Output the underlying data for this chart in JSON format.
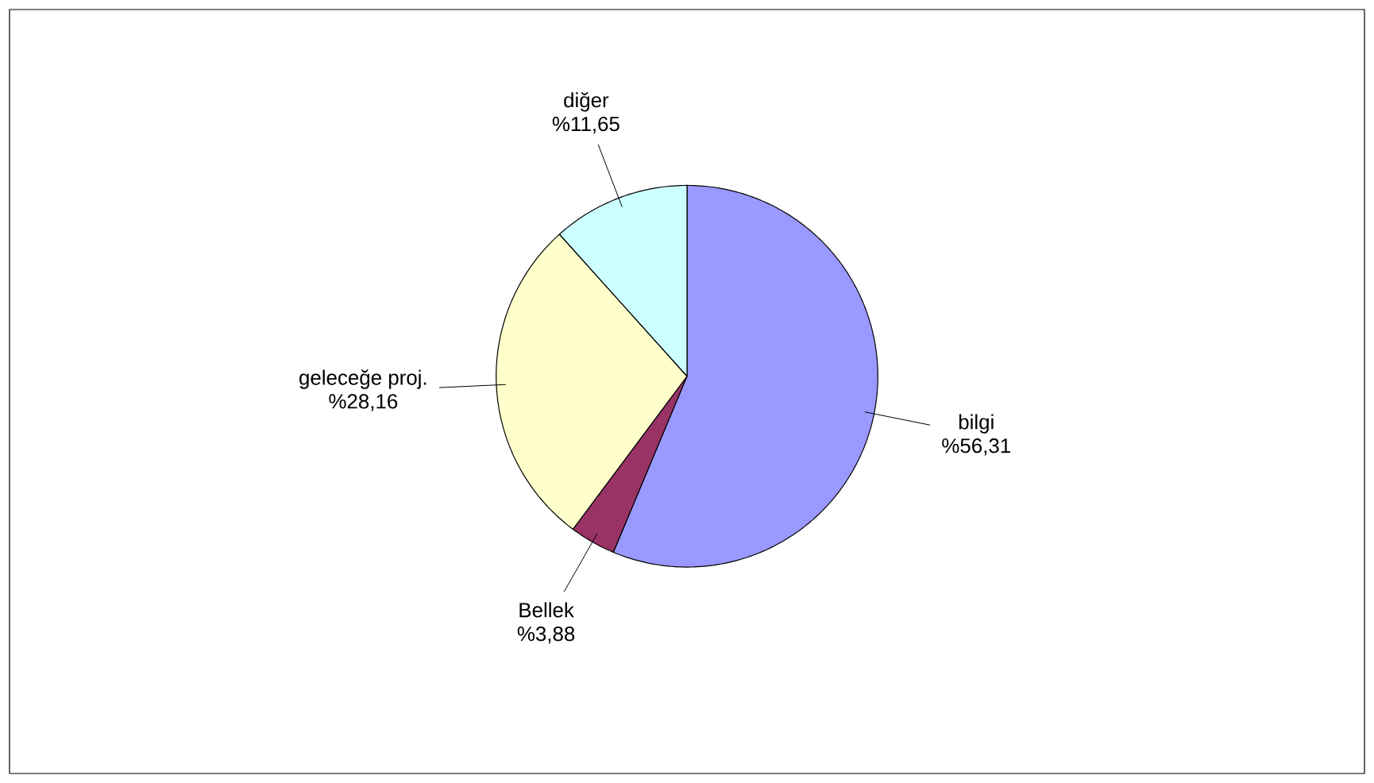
{
  "chart_data": {
    "type": "pie",
    "categories": [
      "bilgi",
      "Bellek",
      "geleceğe proj.",
      "diğer"
    ],
    "values": [
      56.31,
      3.88,
      28.16,
      11.65
    ],
    "value_labels": [
      "%56,31",
      "%3,88",
      "%28,16",
      "%11,65"
    ],
    "colors": [
      "#9999ff",
      "#993366",
      "#ffffcc",
      "#ccffff"
    ]
  }
}
